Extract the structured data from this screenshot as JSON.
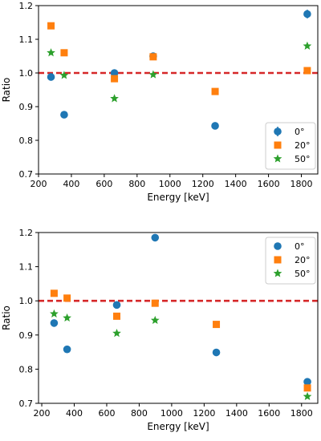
{
  "colors": {
    "series_0": "#1f77b4",
    "series_20": "#ff7f0e",
    "series_50": "#2ca02c",
    "reference": "#d62728"
  },
  "chart_data": [
    {
      "type": "scatter",
      "xlabel": "Energy [keV]",
      "ylabel": "Ratio",
      "xlim": [
        200,
        1900
      ],
      "ylim": [
        0.7,
        1.2
      ],
      "x_ticks": [
        200,
        400,
        600,
        800,
        1000,
        1200,
        1400,
        1600,
        1800
      ],
      "y_ticks": [
        0.7,
        0.8,
        0.9,
        1.0,
        1.1,
        1.2
      ],
      "reference_line": {
        "y": 1.0,
        "style": "dashed",
        "color": "#d62728"
      },
      "legend_position": "lower-right",
      "grid": false,
      "series": [
        {
          "name": "0°",
          "marker": "circle",
          "color": "#1f77b4",
          "x": [
            276,
            356,
            662,
            898,
            1275,
            1836
          ],
          "y": [
            0.988,
            0.876,
            1.0,
            1.05,
            0.843,
            1.175
          ],
          "yerr": [
            0,
            0,
            0,
            0,
            0,
            0.013
          ]
        },
        {
          "name": "20°",
          "marker": "square",
          "color": "#ff7f0e",
          "x": [
            276,
            356,
            662,
            898,
            1275,
            1836
          ],
          "y": [
            1.14,
            1.06,
            0.983,
            1.048,
            0.945,
            1.007
          ]
        },
        {
          "name": "50°",
          "marker": "star",
          "color": "#2ca02c",
          "x": [
            276,
            356,
            662,
            898,
            1836
          ],
          "y": [
            1.06,
            0.993,
            0.924,
            0.995,
            1.08
          ]
        }
      ]
    },
    {
      "type": "scatter",
      "xlabel": "Energy [keV]",
      "ylabel": "Ratio",
      "xlim": [
        180,
        1900
      ],
      "ylim": [
        0.7,
        1.2
      ],
      "x_ticks": [
        200,
        400,
        600,
        800,
        1000,
        1200,
        1400,
        1600,
        1800
      ],
      "y_ticks": [
        0.7,
        0.8,
        0.9,
        1.0,
        1.1,
        1.2
      ],
      "reference_line": {
        "y": 1.0,
        "style": "dashed",
        "color": "#d62728"
      },
      "legend_position": "upper-right",
      "grid": false,
      "series": [
        {
          "name": "0°",
          "marker": "circle",
          "color": "#1f77b4",
          "x": [
            276,
            356,
            662,
            898,
            1275,
            1836
          ],
          "y": [
            0.935,
            0.858,
            0.988,
            1.185,
            0.849,
            0.763
          ]
        },
        {
          "name": "20°",
          "marker": "square",
          "color": "#ff7f0e",
          "x": [
            276,
            356,
            662,
            898,
            1275,
            1836
          ],
          "y": [
            1.022,
            1.008,
            0.955,
            0.993,
            0.931,
            0.745
          ]
        },
        {
          "name": "50°",
          "marker": "star",
          "color": "#2ca02c",
          "x": [
            276,
            356,
            662,
            898,
            1836
          ],
          "y": [
            0.962,
            0.95,
            0.905,
            0.943,
            0.72
          ]
        }
      ]
    }
  ]
}
